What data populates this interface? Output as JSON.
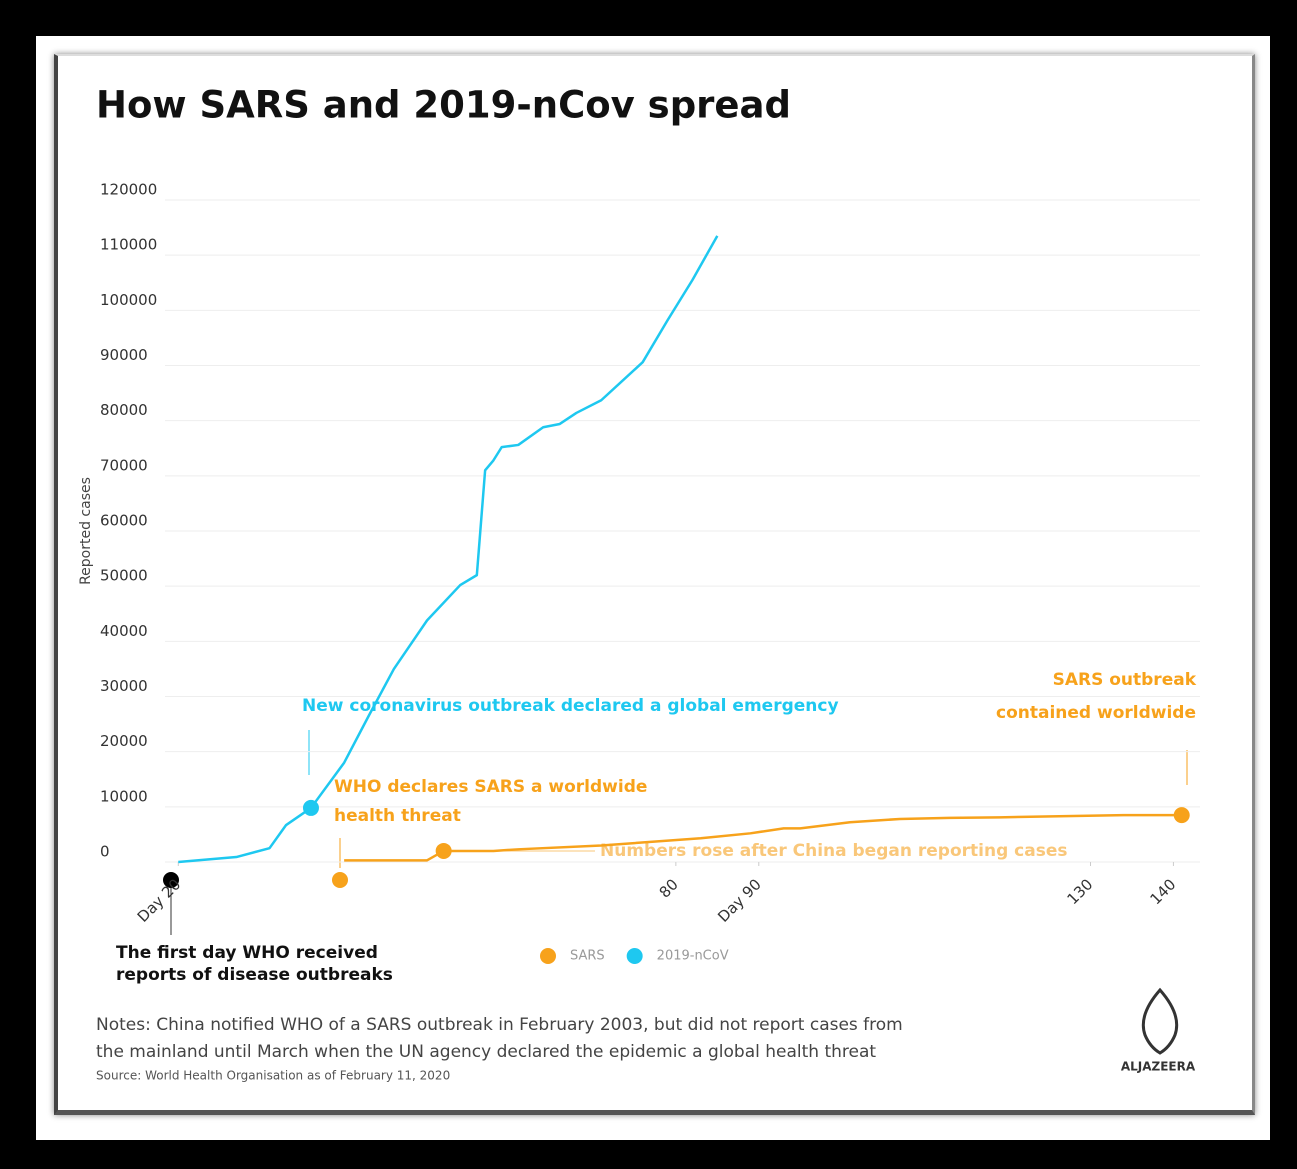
{
  "chart_data": {
    "type": "line",
    "title": "How SARS and 2019-nCov spread",
    "y_label": "Reported cases",
    "xlim": [
      19,
      142
    ],
    "xticks": [
      {
        "value": 20,
        "label": "Day 20"
      },
      80,
      {
        "value": 90,
        "label": "Day 90"
      },
      130,
      140
    ],
    "ylim": [
      0,
      120000
    ],
    "yticks": [
      0,
      10000,
      20000,
      30000,
      40000,
      50000,
      60000,
      70000,
      80000,
      90000,
      100000,
      110000,
      120000
    ],
    "grid": true,
    "series": [
      {
        "name": "SARS",
        "color": "#f7a21b",
        "x": [
          40,
          50,
          52,
          58,
          61,
          71,
          83,
          89,
          93,
          95,
          101,
          107,
          113,
          119,
          134,
          141
        ],
        "values": [
          300,
          300,
          2000,
          2000,
          2300,
          3000,
          4300,
          5200,
          6100,
          6100,
          7200,
          7800,
          8000,
          8100,
          8500,
          8500
        ]
      },
      {
        "name": "2019-nCoV",
        "color": "#1ec8f0",
        "x": [
          20,
          27,
          31,
          33,
          36,
          40,
          43,
          46,
          50,
          54,
          56,
          57,
          58,
          59,
          61,
          64,
          66,
          68,
          71,
          76,
          79,
          82,
          85
        ],
        "values": [
          0,
          900,
          2500,
          6700,
          9800,
          18000,
          26600,
          35000,
          43800,
          50200,
          52000,
          71000,
          72800,
          75200,
          75600,
          78800,
          79400,
          81400,
          83700,
          90600,
          98200,
          105500,
          113500
        ]
      }
    ],
    "annotations": [
      "New coronavirus outbreak declared a global emergency",
      "WHO declares SARS a worldwide",
      "health threat",
      "Numbers rose after China began reporting cases",
      "SARS outbreak",
      "contained worldwide",
      "The first day WHO received",
      "reports of disease outbreaks"
    ],
    "notes": [
      "Notes: China notified WHO of a SARS outbreak in February 2003, but did not report cases from",
      "the mainland until March when the UN agency declared the epidemic a global health threat"
    ],
    "source": "Source: World Health Organisation as of February 11, 2020",
    "brand": "ALJAZEERA"
  }
}
